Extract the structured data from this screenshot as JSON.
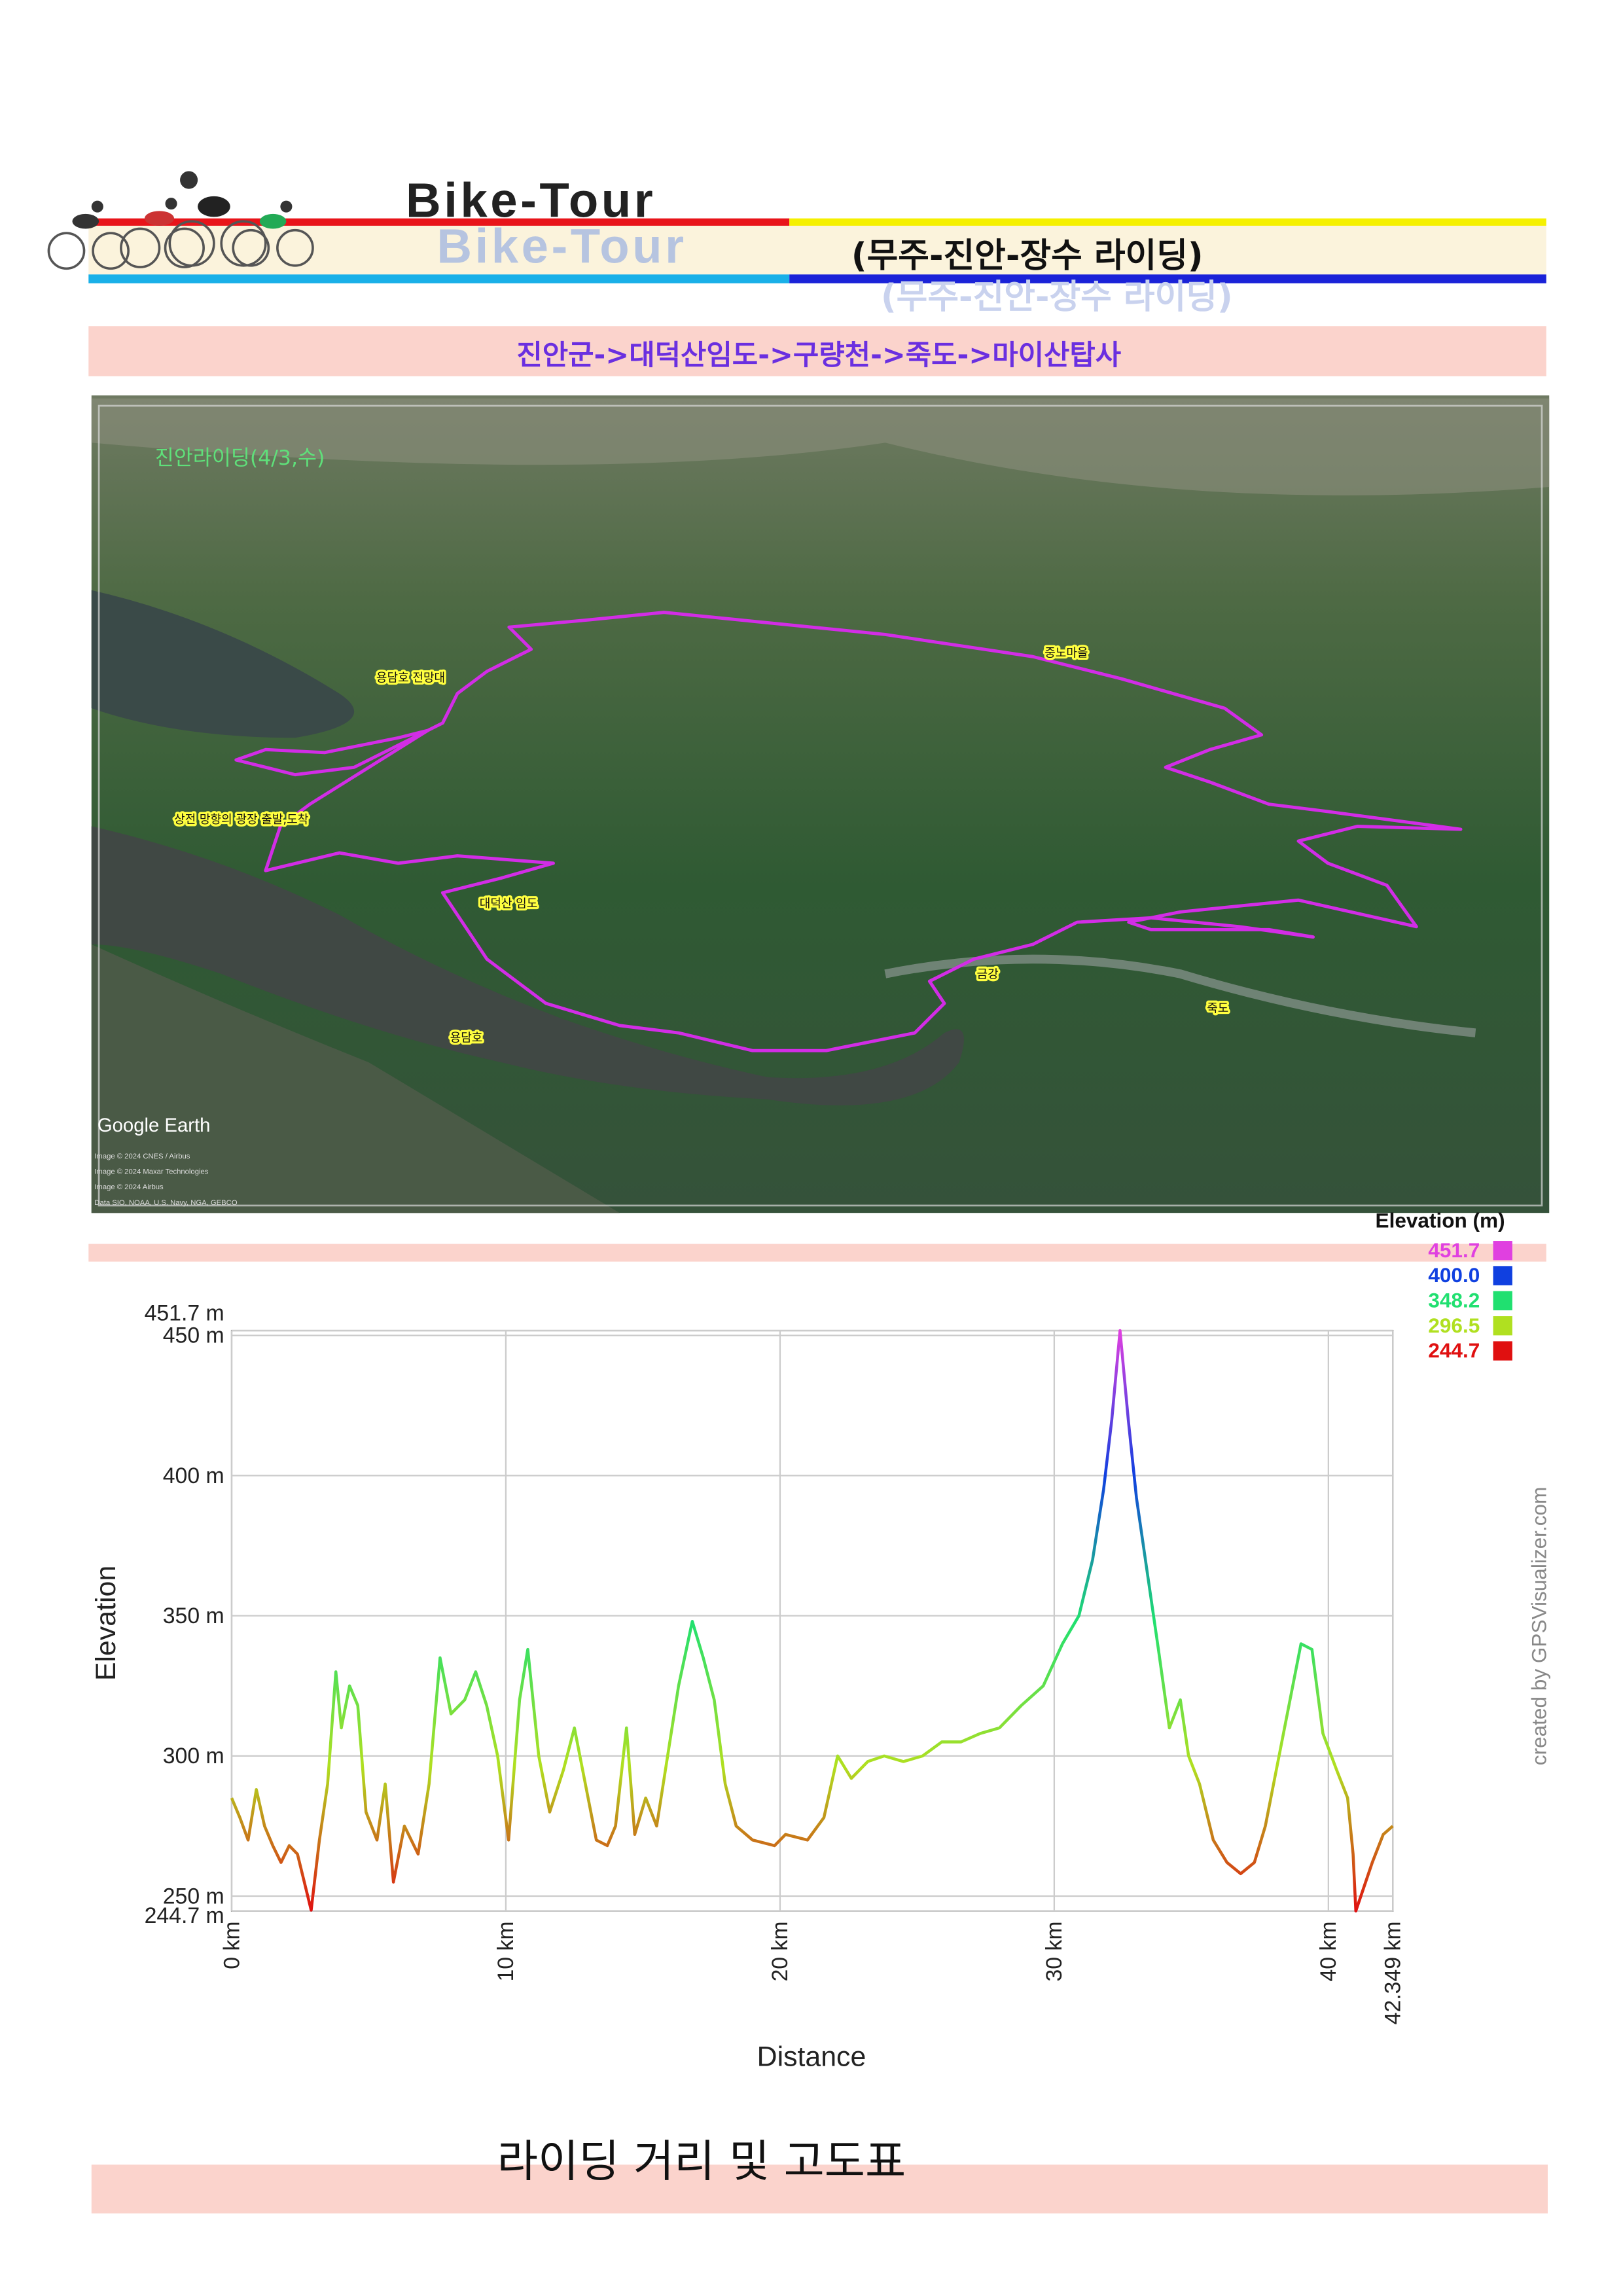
{
  "header": {
    "title": "Bike-Tour",
    "subtitle": "(무주-진안-장수 라이딩)"
  },
  "route": "진안군->대덕산임도->구량천->죽도->마이산탑사",
  "map": {
    "title": "진안라이딩(4/3,수)",
    "labels": [
      "용담호 전망대",
      "상전 망향의 광장 출발,도착",
      "대덕산 임도",
      "용담호",
      "금강",
      "죽도",
      "중노마을"
    ],
    "brand": "Google Earth",
    "credits": [
      "Image © 2024 CNES / Airbus",
      "Image © 2024 Maxar Technologies",
      "Image © 2024 Airbus",
      "Data SIO, NOAA, U.S. Navy, NGA, GEBCO"
    ]
  },
  "chart_data": {
    "type": "line",
    "xlabel": "Distance",
    "ylabel": "Elevation",
    "x": [
      0,
      0.3,
      0.6,
      0.9,
      1.2,
      1.5,
      1.8,
      2.1,
      2.4,
      2.9,
      3.2,
      3.5,
      3.8,
      4.0,
      4.3,
      4.6,
      4.9,
      5.3,
      5.6,
      5.9,
      6.3,
      6.8,
      7.2,
      7.6,
      8.0,
      8.5,
      8.9,
      9.3,
      9.7,
      10.1,
      10.5,
      10.8,
      11.2,
      11.6,
      12.1,
      12.5,
      12.9,
      13.3,
      13.7,
      14.0,
      14.4,
      14.7,
      15.1,
      15.5,
      15.9,
      16.3,
      16.8,
      17.2,
      17.6,
      18.0,
      18.4,
      19.0,
      19.8,
      20.2,
      21.0,
      21.6,
      22.1,
      22.6,
      23.2,
      23.8,
      24.5,
      25.2,
      25.9,
      26.6,
      27.3,
      28.0,
      28.8,
      29.6,
      30.3,
      30.9,
      31.4,
      31.8,
      32.1,
      32.4,
      32.7,
      33.0,
      33.4,
      33.8,
      34.2,
      34.6,
      34.9,
      35.3,
      35.8,
      36.3,
      36.8,
      37.3,
      37.7,
      38.2,
      38.6,
      39.0,
      39.4,
      39.8,
      40.3,
      40.7,
      40.9,
      41.0,
      41.6,
      42.0,
      42.349
    ],
    "values": [
      285,
      278,
      270,
      288,
      275,
      268,
      262,
      268,
      265,
      245,
      270,
      290,
      330,
      310,
      325,
      318,
      280,
      270,
      290,
      255,
      275,
      265,
      290,
      335,
      315,
      320,
      330,
      318,
      300,
      270,
      320,
      338,
      300,
      280,
      295,
      310,
      290,
      270,
      268,
      275,
      310,
      272,
      285,
      275,
      300,
      325,
      348,
      335,
      320,
      290,
      275,
      270,
      268,
      272,
      270,
      278,
      300,
      292,
      298,
      300,
      298,
      300,
      305,
      305,
      308,
      310,
      318,
      325,
      340,
      350,
      370,
      395,
      420,
      451.7,
      420,
      392,
      365,
      338,
      310,
      320,
      300,
      290,
      270,
      262,
      258,
      262,
      275,
      300,
      320,
      340,
      338,
      308,
      295,
      285,
      265,
      244.7,
      262,
      272,
      275
    ],
    "xlim": [
      0,
      42.349
    ],
    "ylim": [
      244.7,
      451.7
    ],
    "xticks": [
      {
        "value": 0,
        "label": "0 km"
      },
      {
        "value": 10,
        "label": "10 km"
      },
      {
        "value": 20,
        "label": "20 km"
      },
      {
        "value": 30,
        "label": "30 km"
      },
      {
        "value": 40,
        "label": "40 km"
      },
      {
        "value": 42.349,
        "label": "42.349 km"
      }
    ],
    "yticks": [
      {
        "value": 244.7,
        "label": "244.7 m"
      },
      {
        "value": 250,
        "label": "250 m"
      },
      {
        "value": 300,
        "label": "300 m"
      },
      {
        "value": 350,
        "label": "350 m"
      },
      {
        "value": 400,
        "label": "400 m"
      },
      {
        "value": 450,
        "label": "450 m"
      },
      {
        "value": 451.7,
        "label": "451.7 m"
      }
    ],
    "grid": true,
    "legend": {
      "title": "Elevation (m)",
      "items": [
        {
          "value": 451.7,
          "label": "451.7",
          "color": "#e040e0"
        },
        {
          "value": 400.0,
          "label": "400.0",
          "color": "#1040e0"
        },
        {
          "value": 348.2,
          "label": "348.2",
          "color": "#20e070"
        },
        {
          "value": 296.5,
          "label": "296.5",
          "color": "#b0e020"
        },
        {
          "value": 244.7,
          "label": "244.7",
          "color": "#e01010"
        }
      ]
    },
    "credit": "created by GPSVisualizer.com"
  },
  "footer": "라이딩 거리 및 고도표"
}
